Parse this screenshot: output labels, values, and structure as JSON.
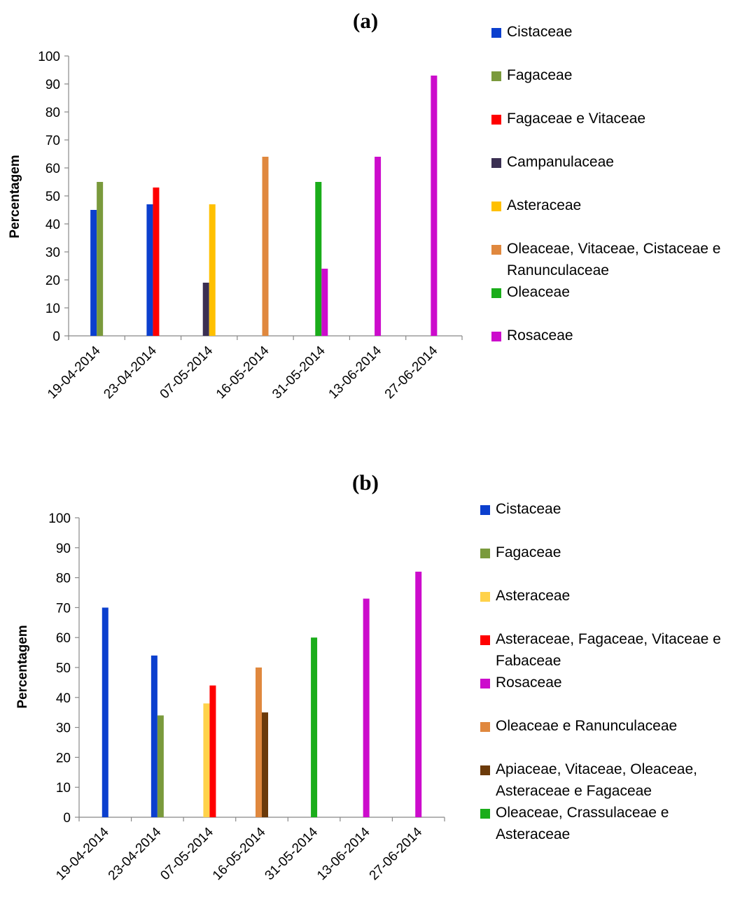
{
  "chart_data": [
    {
      "type": "bar",
      "title": "(a)",
      "xlabel": "",
      "ylabel": "Percentagem",
      "ylim": [
        0,
        100
      ],
      "yticks": [
        0,
        10,
        20,
        30,
        40,
        50,
        60,
        70,
        80,
        90,
        100
      ],
      "grid": false,
      "legend_position": "right",
      "categories": [
        "19-04-2014",
        "23-04-2014",
        "07-05-2014",
        "16-05-2014",
        "31-05-2014",
        "13-06-2014",
        "27-06-2014"
      ],
      "series": [
        {
          "name": "Cistaceae",
          "color": "#0b3fce",
          "values": [
            45,
            47,
            null,
            null,
            null,
            null,
            null
          ]
        },
        {
          "name": "Fagaceae",
          "color": "#7a9a3c",
          "values": [
            55,
            null,
            null,
            null,
            null,
            null,
            null
          ]
        },
        {
          "name": "Fagaceae e Vitaceae",
          "color": "#ff0000",
          "values": [
            null,
            53,
            null,
            null,
            null,
            null,
            null
          ]
        },
        {
          "name": "Campanulaceae",
          "color": "#3a2f52",
          "values": [
            null,
            null,
            19,
            null,
            null,
            null,
            null
          ]
        },
        {
          "name": "Asteraceae",
          "color": "#ffc000",
          "values": [
            null,
            null,
            47,
            null,
            null,
            null,
            null
          ]
        },
        {
          "name": "Oleaceae, Vitaceae, Cistaceae e Ranunculaceae",
          "color": "#e0883e",
          "values": [
            null,
            null,
            null,
            64,
            null,
            null,
            null
          ]
        },
        {
          "name": "Oleaceae",
          "color": "#1aad1a",
          "values": [
            null,
            null,
            null,
            null,
            55,
            null,
            null
          ]
        },
        {
          "name": "Rosaceae",
          "color": "#cc0ccc",
          "values": [
            null,
            null,
            null,
            null,
            24,
            64,
            93
          ]
        }
      ]
    },
    {
      "type": "bar",
      "title": "(b)",
      "xlabel": "",
      "ylabel": "Percentagem",
      "ylim": [
        0,
        100
      ],
      "yticks": [
        0,
        10,
        20,
        30,
        40,
        50,
        60,
        70,
        80,
        90,
        100
      ],
      "grid": false,
      "legend_position": "right",
      "categories": [
        "19-04-2014",
        "23-04-2014",
        "07-05-2014",
        "16-05-2014",
        "31-05-2014",
        "13-06-2014",
        "27-06-2014"
      ],
      "series": [
        {
          "name": "Cistaceae",
          "color": "#0b3fce",
          "values": [
            70,
            54,
            null,
            null,
            null,
            null,
            null
          ]
        },
        {
          "name": "Fagaceae",
          "color": "#7a9a3c",
          "values": [
            null,
            34,
            null,
            null,
            null,
            null,
            null
          ]
        },
        {
          "name": "Asteraceae",
          "color": "#ffd24a",
          "values": [
            null,
            null,
            38,
            null,
            null,
            null,
            null
          ]
        },
        {
          "name": "Asteraceae, Fagaceae, Vitaceae e Fabaceae",
          "color": "#ff0000",
          "values": [
            null,
            null,
            44,
            null,
            null,
            null,
            null
          ]
        },
        {
          "name": "Rosaceae",
          "color": "#cc0ccc",
          "values": [
            null,
            null,
            null,
            null,
            null,
            73,
            82
          ]
        },
        {
          "name": "Oleaceae e Ranunculaceae",
          "color": "#e0883e",
          "values": [
            null,
            null,
            null,
            50,
            null,
            null,
            null
          ]
        },
        {
          "name": "Apiaceae, Vitaceae, Oleaceae, Asteraceae e Fagaceae",
          "color": "#6b3a0a",
          "values": [
            null,
            null,
            null,
            35,
            null,
            null,
            null
          ]
        },
        {
          "name": "Oleaceae, Crassulaceae e Asteraceae",
          "color": "#1aad1a",
          "values": [
            null,
            null,
            null,
            null,
            60,
            null,
            null
          ]
        }
      ]
    }
  ]
}
